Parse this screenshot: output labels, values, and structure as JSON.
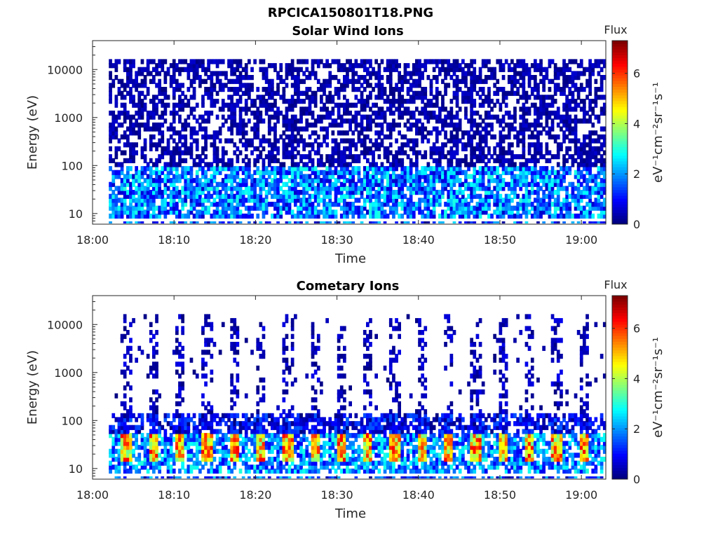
{
  "figure": {
    "title": "RPCICA150801T18.PNG"
  },
  "chart_data": [
    {
      "type": "heatmap",
      "title": "Solar Wind Ions",
      "xlabel": "Time",
      "ylabel": "Energy (eV)",
      "x_ticks": [
        "18:00",
        "18:10",
        "18:20",
        "18:30",
        "18:40",
        "18:50",
        "19:00"
      ],
      "xlim": [
        "18:00",
        "19:03"
      ],
      "data_start": "18:02",
      "y_scale": "log",
      "y_ticks": [
        "10",
        "100",
        "1000",
        "10000"
      ],
      "ylim": [
        6,
        40000
      ],
      "colorbar": {
        "label": "Flux",
        "unit": "eV⁻¹cm⁻²sr⁻¹s⁻¹",
        "range": [
          0,
          7.3
        ],
        "ticks": [
          "0",
          "2",
          "4",
          "6"
        ],
        "colormap": "jet"
      },
      "description_of_values": "sparse low flux (0-1) at 100-15000 eV; moderate flux (1-3.5) below 100 eV"
    },
    {
      "type": "heatmap",
      "title": "Cometary Ions",
      "xlabel": "Time",
      "ylabel": "Energy (eV)",
      "x_ticks": [
        "18:00",
        "18:10",
        "18:20",
        "18:30",
        "18:40",
        "18:50",
        "19:00"
      ],
      "xlim": [
        "18:00",
        "19:03"
      ],
      "data_start": "18:02",
      "y_scale": "log",
      "y_ticks": [
        "10",
        "100",
        "1000",
        "10000"
      ],
      "ylim": [
        6,
        40000
      ],
      "colorbar": {
        "label": "Flux",
        "unit": "eV⁻¹cm⁻²sr⁻¹s⁻¹",
        "range": [
          0,
          7.3
        ],
        "ticks": [
          "0",
          "2",
          "4",
          "6"
        ],
        "colormap": "jet"
      },
      "description_of_values": "periodic vertical streaks (~3.3 min period) up to 10000 eV; high flux (4-6.5) bursts at 15-40 eV"
    }
  ]
}
